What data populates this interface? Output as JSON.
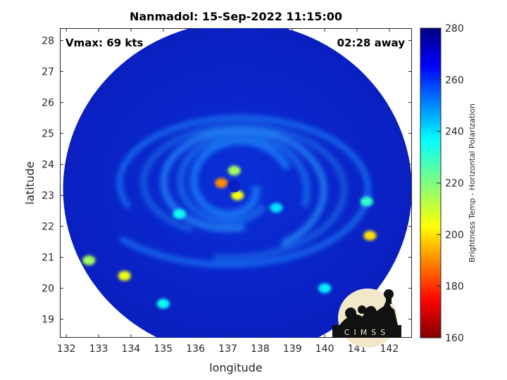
{
  "chart_data": {
    "type": "heatmap",
    "title": "Nanmadol: 15-Sep-2022 11:15:00",
    "xlabel": "longitude",
    "ylabel": "latitude",
    "xlim": [
      131.8,
      142.7
    ],
    "ylim": [
      18.4,
      28.4
    ],
    "xticks": [
      132,
      133,
      134,
      135,
      136,
      137,
      138,
      139,
      140,
      141,
      142
    ],
    "yticks": [
      19,
      20,
      21,
      22,
      23,
      24,
      25,
      26,
      27,
      28
    ],
    "colorbar": {
      "label": "Brightness Temp - Horizontal Polarization",
      "min": 160,
      "max": 280,
      "ticks": [
        160,
        180,
        200,
        220,
        240,
        260,
        280
      ],
      "colormap": "jet"
    },
    "annotations": {
      "left": "Vmax: 69 kts",
      "right": "02:28 away"
    },
    "swath": {
      "center": [
        137.3,
        23.2
      ],
      "radius_lon": 5.4,
      "radius_lat": 5.4
    },
    "eye_center": [
      137.2,
      23.3
    ],
    "features": [
      {
        "lon": 136.8,
        "lat": 23.4,
        "value": 190
      },
      {
        "lon": 137.3,
        "lat": 23.0,
        "value": 205
      },
      {
        "lon": 137.2,
        "lat": 23.8,
        "value": 215
      },
      {
        "lon": 141.4,
        "lat": 21.7,
        "value": 200
      },
      {
        "lon": 141.3,
        "lat": 22.8,
        "value": 230
      },
      {
        "lon": 132.7,
        "lat": 20.9,
        "value": 215
      },
      {
        "lon": 133.8,
        "lat": 20.4,
        "value": 205
      },
      {
        "lon": 135.5,
        "lat": 22.4,
        "value": 235
      },
      {
        "lon": 138.5,
        "lat": 22.6,
        "value": 240
      },
      {
        "lon": 140.0,
        "lat": 20.0,
        "value": 238
      },
      {
        "lon": 135.0,
        "lat": 19.5,
        "value": 235
      }
    ],
    "grid": false
  },
  "logo": {
    "text": "CIMSS"
  }
}
